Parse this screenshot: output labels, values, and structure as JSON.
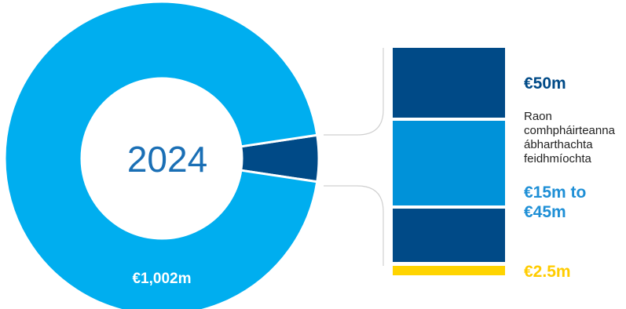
{
  "chart_data": {
    "type": "pie",
    "variant": "donut-with-breakdown",
    "center_label": "2024",
    "total_label": "€1,002m",
    "slices": [
      {
        "name": "",
        "value": 1002,
        "color": "#00aeef"
      },
      {
        "name": "",
        "value": 50,
        "color": "#004a87"
      }
    ],
    "breakdown": [
      {
        "value_label": "€50m",
        "color": "#004a87"
      },
      {
        "value_label": "",
        "color": "#0092d9"
      },
      {
        "value_label": "",
        "color": "#004a87"
      },
      {
        "value_label": "€2.5m",
        "color": "#ffd400"
      }
    ],
    "range": {
      "text": "Raon comhpháirteanna ábharthachta feidhmíochta",
      "value_label": "€15m to €45m"
    }
  },
  "colors": {
    "light_blue": "#00aeef",
    "dark_blue": "#004a87",
    "mid_blue": "#0092d9",
    "yellow": "#ffd400",
    "center_text": "#1a6fb5",
    "connector": "#d0d0d0"
  }
}
